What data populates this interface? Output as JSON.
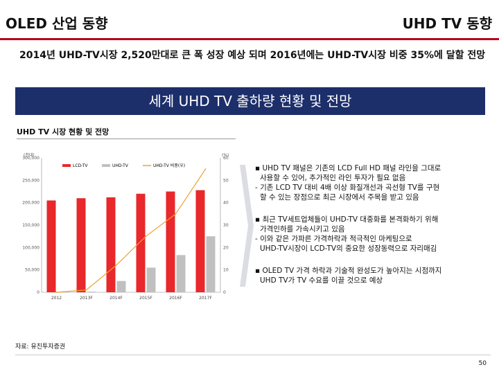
{
  "header": {
    "left_title": "OLED 산업 동향",
    "right_title": "UHD TV 동향"
  },
  "headline": "2014년 UHD-TV시장 2,520만대로 큰 폭 성장 예상 되며 2016년에는 UHD-TV시장 비중 35%에 달할 전망",
  "banner": "세계 UHD TV 출하량 현황 및 전망",
  "chart_section_title": "UHD TV 시장 현황 및 전망",
  "chart_data": {
    "type": "bar",
    "categories": [
      "2012",
      "2013F",
      "2014F",
      "2015F",
      "2016F",
      "2017F"
    ],
    "series": [
      {
        "name": "LCD-TV",
        "values": [
          205000,
          210000,
          212000,
          220000,
          225000,
          228000
        ]
      },
      {
        "name": "UHD-TV",
        "values": [
          0,
          1500,
          25200,
          55000,
          83000,
          125000
        ]
      }
    ],
    "line_series": {
      "name": "UHD-TV 비중(우)",
      "values": [
        0,
        1,
        12,
        25,
        35,
        55
      ]
    },
    "ylabel_left": "(천대)",
    "ylabel_right": "(%)",
    "ylim_left": [
      0,
      300000
    ],
    "ylim_right": [
      0,
      60
    ],
    "yticks_left": [
      "0",
      "50,000",
      "100,000",
      "150,000",
      "200,000",
      "250,000",
      "300,000"
    ],
    "yticks_right": [
      "0",
      "10",
      "20",
      "30",
      "40",
      "50",
      "60"
    ],
    "colors": {
      "lcd": "#e8282b",
      "uhd": "#c0c0c0",
      "ratio": "#f0a030"
    }
  },
  "bullets": [
    {
      "main": "▪ UHD TV 패널은 기존의 LCD Full HD 패널 라인을 그대로",
      "cont": "사용할 수 있어, 추가적인 라인 투자가 필요 없음",
      "sub": "- 기존 LCD TV 대비 4배 이상 화질개선과 곡선형 TV를 구현",
      "sub_cont": "할 수 있는 장점으로 최근 시장에서 주목을 받고 있음"
    },
    {
      "main": "▪ 최근 TV세트업체들이 UHD-TV 대중화를 본격화하기 위해",
      "cont": "가격인하를 가속시키고 있음",
      "sub": "- 이와 같은 가파른 가격하락과 적극적인 마케팅으로",
      "sub_cont": "UHD-TV시장이 LCD-TV의 중요한 성장동력으로 자리매김"
    },
    {
      "main": "▪ OLED TV 가격 하락과 기술적 완성도가 높아지는 시점까지",
      "cont": "UHD TV가 TV 수요를 이끌 것으로 예상"
    }
  ],
  "source": "자료: 유진투자증권",
  "page_number": "50"
}
